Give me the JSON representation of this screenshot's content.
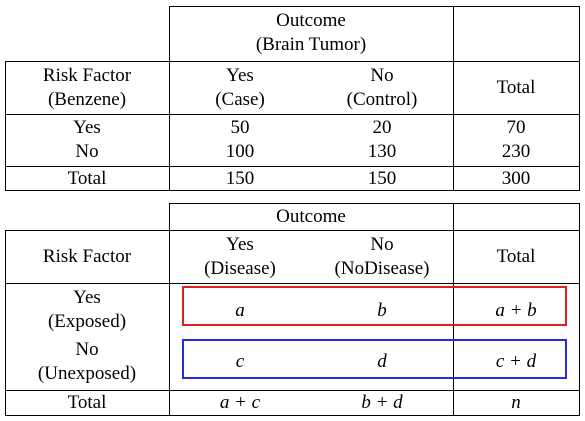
{
  "table1": {
    "outcome_header": "Outcome",
    "outcome_subheader": "(Brain Tumor)",
    "risk_factor_line1": "Risk Factor",
    "risk_factor_line2": "(Benzene)",
    "yes_col_line1": "Yes",
    "yes_col_line2": "(Case)",
    "no_col_line1": "No",
    "no_col_line2": "(Control)",
    "total_header": "Total",
    "row_yes_label": "Yes",
    "row_no_label": "No",
    "yes_case": "50",
    "no_case": "100",
    "yes_control": "20",
    "no_control": "130",
    "yes_total": "70",
    "no_total": "230",
    "total_label": "Total",
    "total_case": "150",
    "total_control": "150",
    "grand_total": "300"
  },
  "table2": {
    "outcome_header": "Outcome",
    "risk_factor": "Risk Factor",
    "yes_col_line1": "Yes",
    "yes_col_line2": "(Disease)",
    "no_col_line1": "No",
    "no_col_line2": "(NoDisease)",
    "total_header": "Total",
    "row_yes_line1": "Yes",
    "row_yes_line2": "(Exposed)",
    "row_no_line1": "No",
    "row_no_line2": "(Unexposed)",
    "cell_a": "a",
    "cell_b": "b",
    "cell_a_plus_b": "a + b",
    "cell_c": "c",
    "cell_d": "d",
    "cell_c_plus_d": "c + d",
    "total_label": "Total",
    "cell_a_plus_c": "a + c",
    "cell_b_plus_d": "b + d",
    "cell_n": "n"
  },
  "colors": {
    "exposed_box": "#e02020",
    "unexposed_box": "#1f2fe0"
  }
}
